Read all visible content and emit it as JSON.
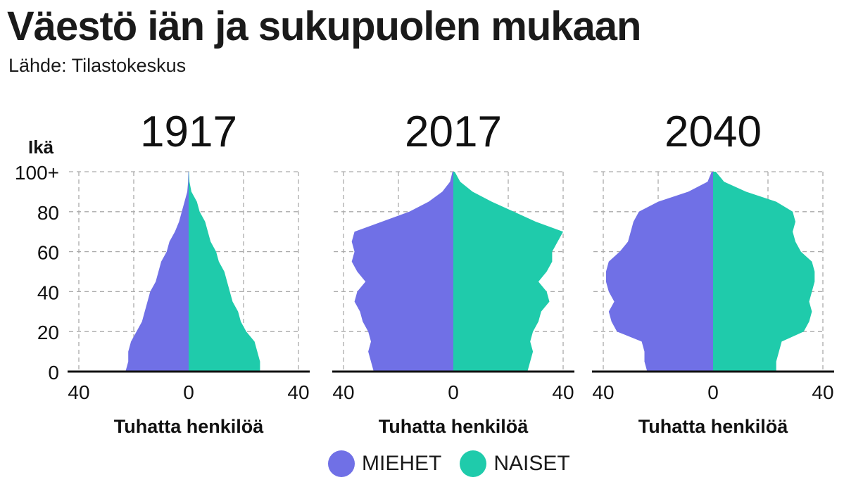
{
  "title": "Väestö iän ja sukupuolen mukaan",
  "subtitle": "Lähde: Tilastokeskus",
  "colors": {
    "men": "#7070e6",
    "women": "#1fcbab",
    "grid": "#aaaaaa",
    "axis": "#111111"
  },
  "legend": {
    "men": "MIEHET",
    "women": "NAISET"
  },
  "chart_data": {
    "type": "area",
    "chart_kind": "population-pyramid",
    "y_axis_title": "Ikä",
    "y_ticks": [
      "0",
      "20",
      "40",
      "60",
      "80",
      "100+"
    ],
    "ylim": [
      0,
      100
    ],
    "xlim": [
      -40,
      40
    ],
    "x_ticks": [
      "40",
      "0",
      "40"
    ],
    "xlabel": "Tuhatta henkilöä",
    "ages": [
      0,
      5,
      10,
      15,
      20,
      25,
      30,
      35,
      40,
      45,
      50,
      55,
      60,
      65,
      70,
      75,
      80,
      85,
      90,
      95,
      100
    ],
    "panels": [
      {
        "title": "1917",
        "men": [
          23,
          22,
          22,
          21,
          19,
          17,
          16,
          15,
          14,
          12,
          11,
          10,
          8,
          7,
          5,
          3.5,
          2.5,
          1.5,
          0.5,
          0.2,
          0.1
        ],
        "women": [
          26,
          26,
          25,
          24,
          21,
          19,
          18,
          16,
          15,
          14,
          13,
          11,
          10,
          8,
          7,
          6,
          4,
          3,
          1,
          0.3,
          0.1
        ]
      },
      {
        "title": "2017",
        "men": [
          29,
          30,
          31,
          30,
          31,
          33,
          34,
          36,
          35,
          32,
          35,
          37,
          36,
          37,
          36,
          26,
          16,
          9,
          4,
          1.2,
          0.3
        ],
        "women": [
          27,
          28,
          29,
          28,
          29,
          31,
          32,
          35,
          34,
          31,
          34,
          36,
          36,
          38,
          40,
          30,
          22,
          14,
          7,
          2.5,
          0.5
        ]
      },
      {
        "title": "2040",
        "men": [
          24,
          25,
          25,
          26,
          35,
          37,
          38,
          36,
          38,
          39,
          39,
          38,
          34,
          31,
          30,
          29,
          27,
          20,
          9,
          2,
          0.5
        ],
        "women": [
          23,
          23,
          24,
          25,
          33,
          35,
          36,
          35,
          36,
          37,
          37,
          36,
          32,
          30,
          29,
          30,
          29,
          23,
          12,
          4,
          1
        ]
      }
    ]
  }
}
